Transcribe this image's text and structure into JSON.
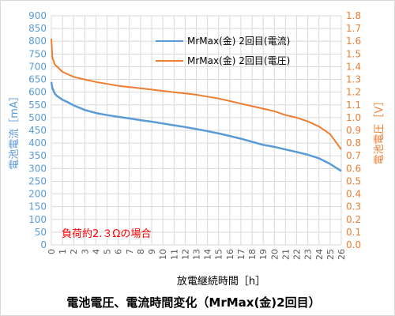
{
  "chart_data": {
    "type": "line",
    "title": "電池電圧、電流時間変化（MrMax(金)2回目）",
    "xlabel": "放電継続時間［h］",
    "ylabel_left": "電池電流［mA］",
    "ylabel_right": "電池電圧［V］",
    "xlim": [
      0,
      26
    ],
    "ylim_left": [
      0,
      900
    ],
    "ylim_right": [
      0.0,
      1.8
    ],
    "x_ticks": [
      "0",
      "1",
      "2",
      "3",
      "4",
      "5",
      "6",
      "7",
      "8",
      "9",
      "10",
      "11",
      "12",
      "13",
      "14",
      "15",
      "16",
      "17",
      "18",
      "19",
      "20",
      "21",
      "22",
      "23",
      "24",
      "25",
      "26"
    ],
    "y_ticks_left": [
      "0",
      "50",
      "100",
      "150",
      "200",
      "250",
      "300",
      "350",
      "400",
      "450",
      "500",
      "550",
      "600",
      "650",
      "700",
      "750",
      "800",
      "850",
      "900"
    ],
    "y_ticks_right": [
      "0.0",
      "0.1",
      "0.2",
      "0.3",
      "0.4",
      "0.5",
      "0.6",
      "0.7",
      "0.8",
      "0.9",
      "1.0",
      "1.1",
      "1.2",
      "1.3",
      "1.4",
      "1.5",
      "1.6",
      "1.7",
      "1.8"
    ],
    "grid": true,
    "legend_position": "top-right",
    "annotation": "負荷約2.３Ωの場合",
    "series": [
      {
        "name": "MrMax(金) 2回目(電流)",
        "axis": "left",
        "color": "#5b9bd5",
        "x": [
          0,
          0.1,
          0.3,
          0.5,
          1,
          1.5,
          2,
          3,
          4,
          5,
          6,
          7,
          8,
          9,
          10,
          11,
          12,
          13,
          14,
          15,
          16,
          17,
          18,
          19,
          20,
          21,
          22,
          23,
          24,
          25,
          26
        ],
        "y": [
          640,
          615,
          595,
          585,
          570,
          560,
          548,
          530,
          518,
          510,
          503,
          497,
          490,
          484,
          477,
          470,
          463,
          455,
          447,
          438,
          428,
          417,
          405,
          393,
          385,
          375,
          365,
          354,
          340,
          318,
          290
        ]
      },
      {
        "name": "MrMax(金) 2回目(電圧)",
        "axis": "right",
        "color": "#ed7d31",
        "x": [
          0,
          0.1,
          0.3,
          0.5,
          1,
          1.5,
          2,
          3,
          4,
          5,
          6,
          7,
          8,
          9,
          10,
          11,
          12,
          13,
          14,
          15,
          16,
          17,
          18,
          19,
          20,
          21,
          22,
          23,
          24,
          25,
          26
        ],
        "y": [
          1.62,
          1.47,
          1.42,
          1.4,
          1.36,
          1.34,
          1.32,
          1.3,
          1.28,
          1.265,
          1.25,
          1.24,
          1.23,
          1.22,
          1.21,
          1.2,
          1.19,
          1.18,
          1.165,
          1.15,
          1.13,
          1.11,
          1.09,
          1.07,
          1.05,
          1.02,
          1.0,
          0.97,
          0.93,
          0.87,
          0.75
        ]
      }
    ]
  }
}
